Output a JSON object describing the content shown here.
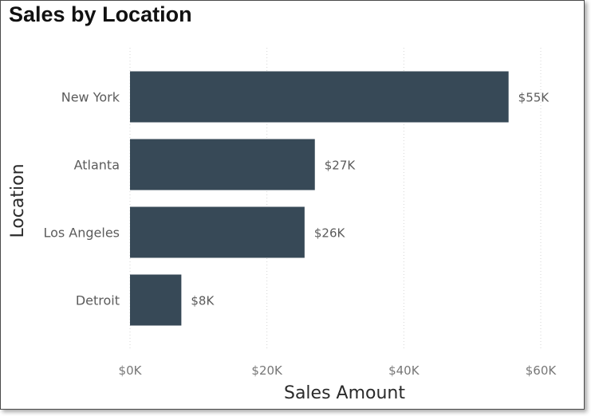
{
  "chart_data": {
    "type": "bar",
    "orientation": "horizontal",
    "title": "Sales by Location",
    "xlabel": "Sales Amount",
    "ylabel": "Location",
    "categories": [
      "New York",
      "Atlanta",
      "Los Angeles",
      "Detroit"
    ],
    "values": [
      55300,
      27000,
      25500,
      7500
    ],
    "data_labels": [
      "$55K",
      "$27K",
      "$26K",
      "$8K"
    ],
    "xlim": [
      0,
      60000
    ],
    "xticks": [
      0,
      20000,
      40000,
      60000
    ],
    "xtick_labels": [
      "$0K",
      "$20K",
      "$40K",
      "$60K"
    ],
    "grid": "vertical-dotted",
    "legend": "none",
    "bar_color": "#374957"
  }
}
